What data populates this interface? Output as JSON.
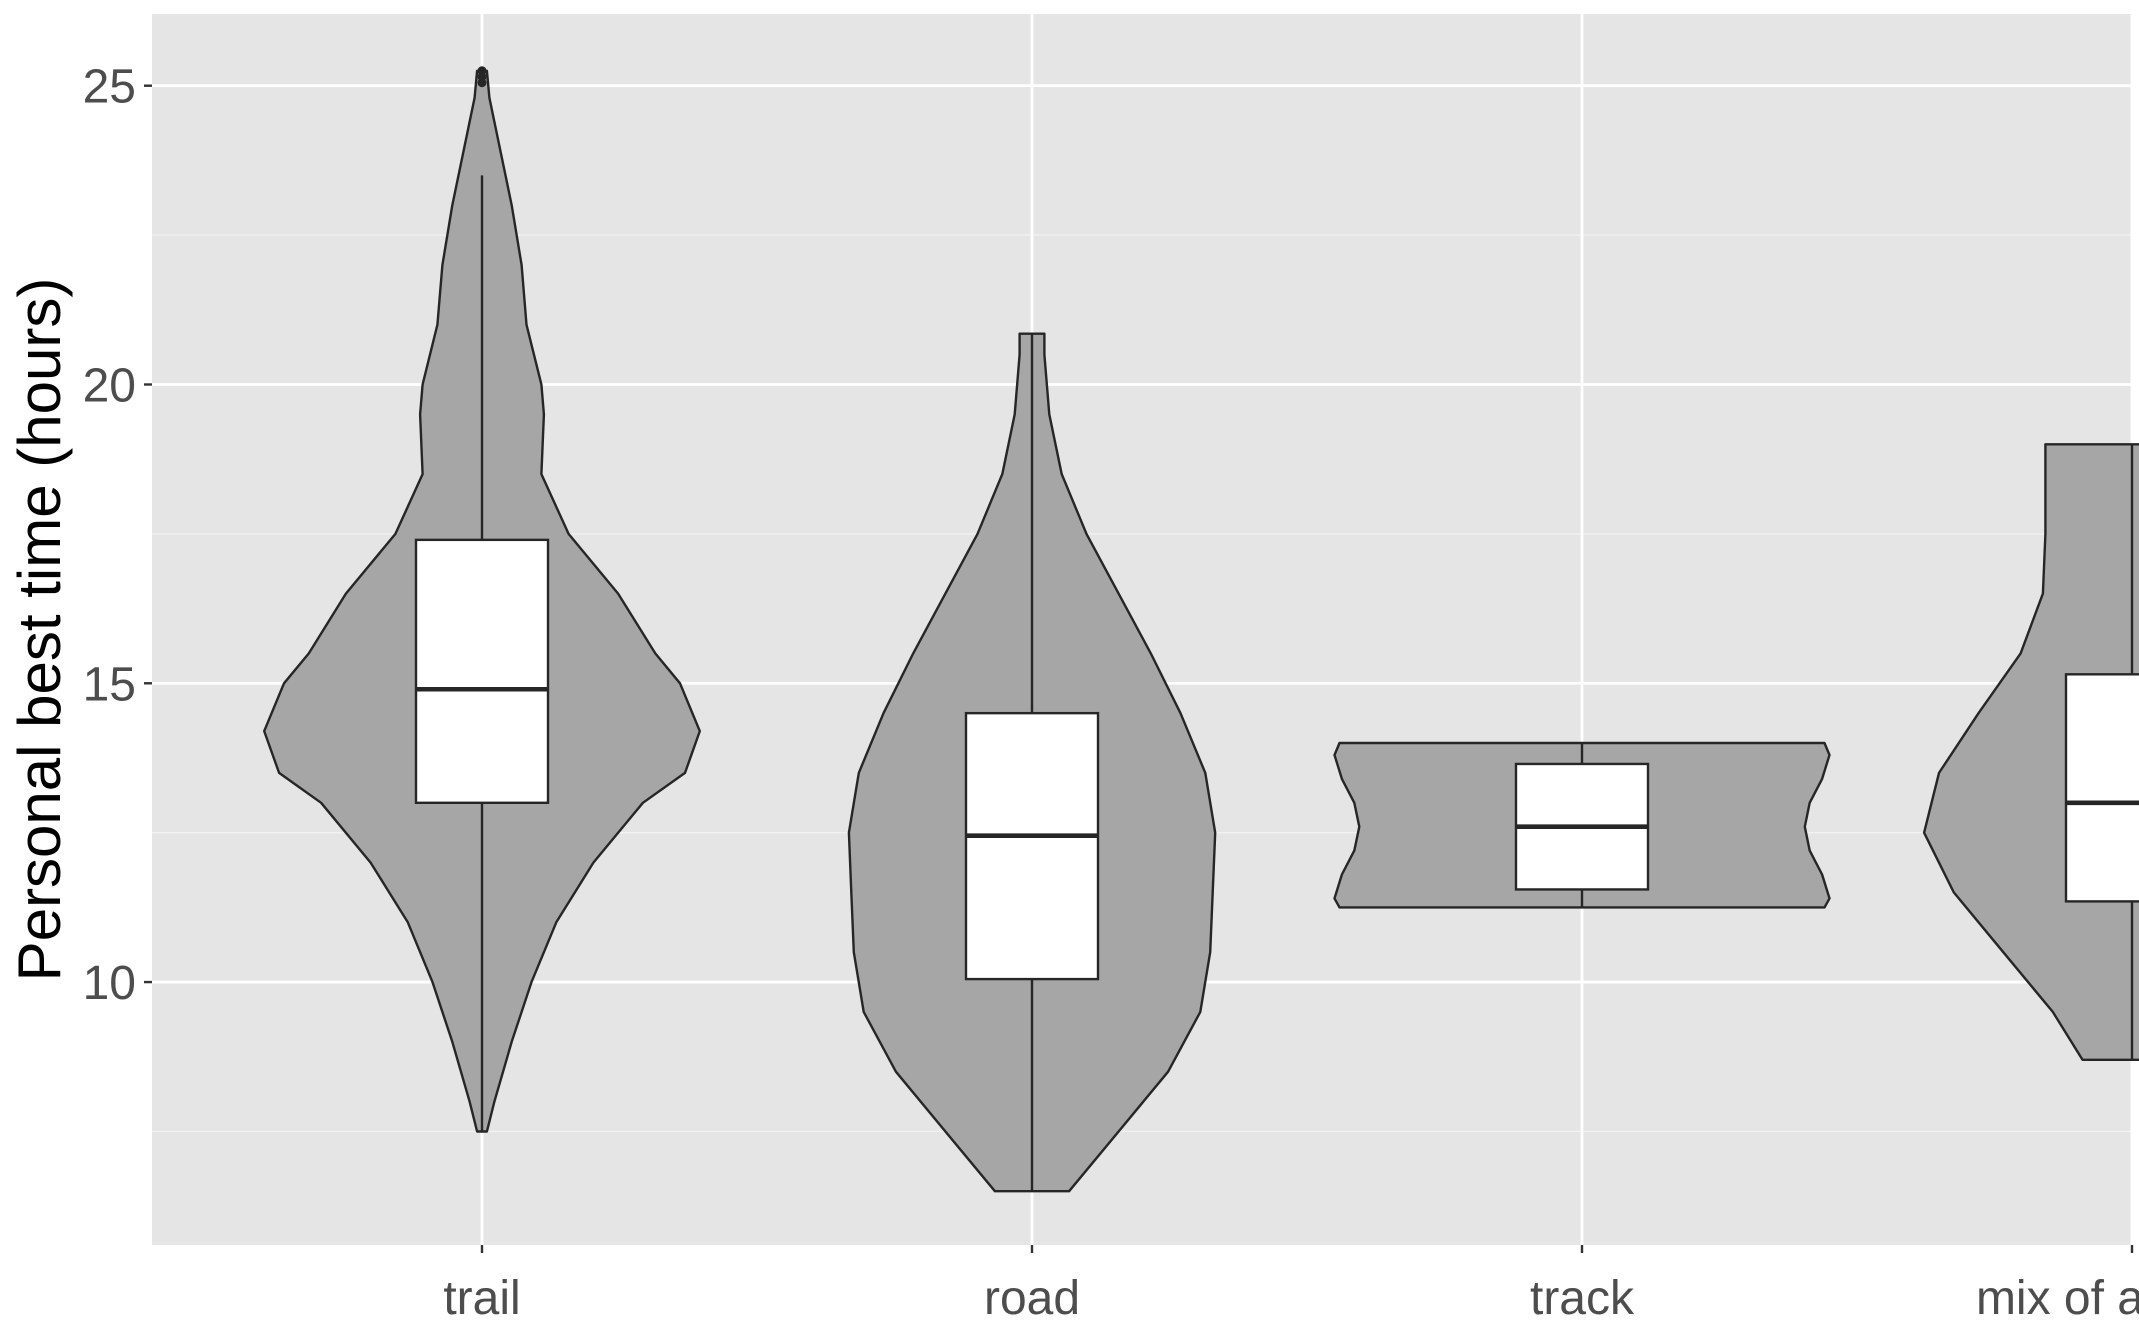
{
  "chart_data": {
    "type": "violin",
    "ylabel": "Personal best time (hours)",
    "xlabel": "",
    "ylim": [
      5.6,
      26.2
    ],
    "yticks": [
      10,
      15,
      20,
      25
    ],
    "ytick_labels": [
      "10",
      "15",
      "20",
      "25"
    ],
    "grid": true,
    "categories": [
      "trail",
      "road",
      "track",
      "mix of all three"
    ],
    "series": [
      {
        "category": "trail",
        "min": 7.5,
        "max": 25.25,
        "whisker_low": 7.5,
        "q1": 13.0,
        "median": 14.9,
        "q3": 17.4,
        "whisker_high": 23.5,
        "outliers": [
          25.05,
          25.15,
          25.25
        ],
        "density": [
          [
            7.5,
            0.02
          ],
          [
            8.0,
            0.05
          ],
          [
            9.0,
            0.12
          ],
          [
            10.0,
            0.2
          ],
          [
            11.0,
            0.3
          ],
          [
            12.0,
            0.45
          ],
          [
            13.0,
            0.65
          ],
          [
            13.5,
            0.82
          ],
          [
            14.2,
            0.88
          ],
          [
            15.0,
            0.8
          ],
          [
            15.5,
            0.7
          ],
          [
            16.5,
            0.55
          ],
          [
            17.5,
            0.35
          ],
          [
            18.5,
            0.24
          ],
          [
            19.5,
            0.25
          ],
          [
            20.0,
            0.24
          ],
          [
            21.0,
            0.18
          ],
          [
            22.0,
            0.16
          ],
          [
            23.0,
            0.12
          ],
          [
            24.0,
            0.07
          ],
          [
            24.8,
            0.03
          ],
          [
            25.25,
            0.02
          ]
        ]
      },
      {
        "category": "road",
        "min": 6.5,
        "max": 20.85,
        "whisker_low": 6.5,
        "q1": 10.05,
        "median": 12.45,
        "q3": 14.5,
        "whisker_high": 20.85,
        "outliers": [],
        "density": [
          [
            6.5,
            0.15
          ],
          [
            7.5,
            0.35
          ],
          [
            8.5,
            0.55
          ],
          [
            9.5,
            0.68
          ],
          [
            10.5,
            0.72
          ],
          [
            11.5,
            0.73
          ],
          [
            12.5,
            0.74
          ],
          [
            13.5,
            0.7
          ],
          [
            14.5,
            0.6
          ],
          [
            15.5,
            0.48
          ],
          [
            16.5,
            0.35
          ],
          [
            17.5,
            0.22
          ],
          [
            18.5,
            0.12
          ],
          [
            19.5,
            0.07
          ],
          [
            20.5,
            0.05
          ],
          [
            20.85,
            0.05
          ]
        ]
      },
      {
        "category": "track",
        "min": 11.25,
        "max": 14.0,
        "whisker_low": 11.25,
        "q1": 11.55,
        "median": 12.6,
        "q3": 13.65,
        "whisker_high": 14.0,
        "outliers": [],
        "density": [
          [
            11.25,
            0.98
          ],
          [
            11.4,
            1.0
          ],
          [
            11.8,
            0.97
          ],
          [
            12.2,
            0.92
          ],
          [
            12.6,
            0.9
          ],
          [
            13.0,
            0.92
          ],
          [
            13.4,
            0.97
          ],
          [
            13.8,
            1.0
          ],
          [
            14.0,
            0.98
          ]
        ]
      },
      {
        "category": "mix of all three",
        "min": 8.7,
        "max": 19.0,
        "whisker_low": 8.7,
        "q1": 11.35,
        "median": 13.0,
        "q3": 15.15,
        "whisker_high": 19.0,
        "outliers": [],
        "density": [
          [
            8.7,
            0.2
          ],
          [
            9.5,
            0.32
          ],
          [
            10.5,
            0.52
          ],
          [
            11.5,
            0.72
          ],
          [
            12.5,
            0.84
          ],
          [
            13.5,
            0.78
          ],
          [
            14.5,
            0.62
          ],
          [
            15.5,
            0.45
          ],
          [
            16.5,
            0.36
          ],
          [
            17.5,
            0.35
          ],
          [
            18.5,
            0.35
          ],
          [
            19.0,
            0.35
          ]
        ]
      }
    ]
  }
}
